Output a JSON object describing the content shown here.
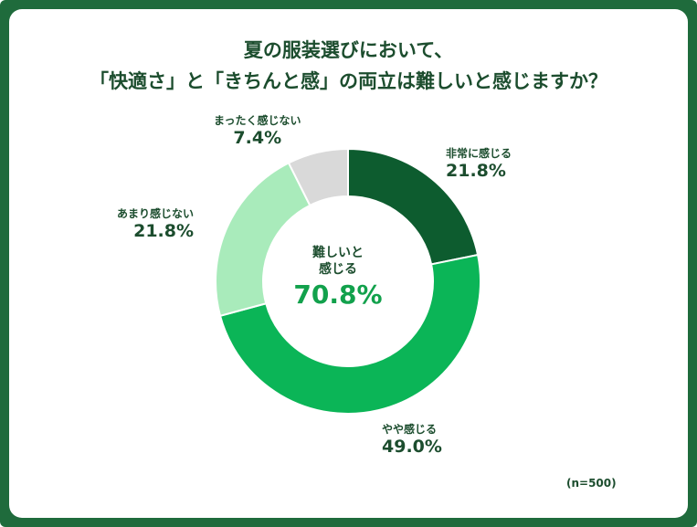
{
  "chart_data": {
    "type": "pie",
    "title_lines": [
      "夏の服装選びにおいて、",
      "「快適さ」と「きちんと感」の両立は難しいと感じますか？"
    ],
    "categories": [
      "非常に感じる",
      "やや感じる",
      "あまり感じない",
      "まったく感じない"
    ],
    "values": [
      21.8,
      49.0,
      21.8,
      7.4
    ],
    "value_labels": [
      "21.8%",
      "49.0%",
      "21.8%",
      "7.4%"
    ],
    "colors": [
      "#0d5c2f",
      "#0bb557",
      "#a9ebbb",
      "#d9d9d9"
    ],
    "start_angle_deg": 0,
    "direction": "clockwise",
    "donut": true,
    "center_label_lines": [
      "難しいと",
      "感じる"
    ],
    "center_value": "70.8%",
    "note": "(n=500)"
  }
}
